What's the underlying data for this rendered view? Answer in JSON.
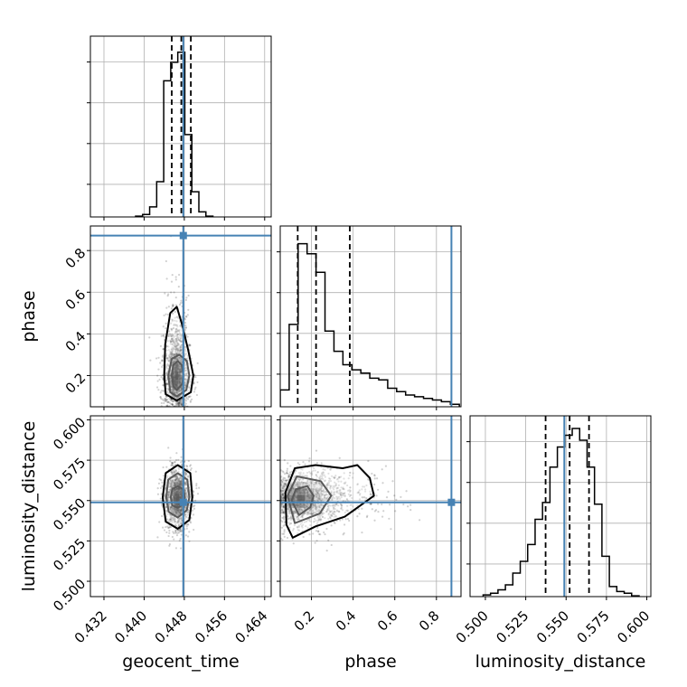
{
  "chart_data": {
    "type": "corner",
    "colors": {
      "truth": "#4682b4",
      "hist": "#000000",
      "quantile": "#000000",
      "grid": "#b0b0b0"
    },
    "parameters": [
      "geocent_time",
      "phase",
      "luminosity_distance"
    ],
    "truths": {
      "geocent_time": 0.4478,
      "phase": 0.872,
      "luminosity_distance": 0.5489
    },
    "quantiles": {
      "geocent_time": [
        0.4455,
        0.4474,
        0.4493
      ],
      "phase": [
        0.134,
        0.222,
        0.384
      ],
      "luminosity_distance": [
        0.5373,
        0.5522,
        0.5642
      ]
    },
    "axes": {
      "geocent_time": {
        "label": "geocent_time",
        "range": [
          0.4293,
          0.4653
        ],
        "ticks": [
          0.432,
          0.44,
          0.448,
          0.456,
          0.464
        ],
        "tick_labels": [
          "0.432",
          "0.440",
          "0.448",
          "0.456",
          "0.464"
        ]
      },
      "phase": {
        "label": "phase",
        "range": [
          0.05,
          0.918
        ],
        "ticks": [
          0.2,
          0.4,
          0.6,
          0.8
        ],
        "tick_labels": [
          "0.2",
          "0.4",
          "0.6",
          "0.8"
        ]
      },
      "luminosity_distance": {
        "label": "luminosity_distance",
        "range": [
          0.4905,
          0.6025
        ],
        "ticks": [
          0.5,
          0.525,
          0.55,
          0.575,
          0.6
        ],
        "tick_labels": [
          "0.500",
          "0.525",
          "0.550",
          "0.575",
          "0.600"
        ]
      }
    },
    "histograms": {
      "geocent_time": {
        "edges": [
          0.4383,
          0.4397,
          0.4411,
          0.4425,
          0.4439,
          0.4453,
          0.4467,
          0.4481,
          0.4495,
          0.4509,
          0.4523,
          0.4537
        ],
        "counts": [
          0.005,
          0.015,
          0.06,
          0.21,
          0.81,
          0.92,
          0.98,
          0.49,
          0.15,
          0.03,
          0.005
        ]
      },
      "phase": {
        "edges": [
          0.05,
          0.093,
          0.136,
          0.179,
          0.222,
          0.265,
          0.308,
          0.351,
          0.394,
          0.437,
          0.48,
          0.523,
          0.566,
          0.609,
          0.652,
          0.695,
          0.738,
          0.781,
          0.824,
          0.867,
          0.91
        ],
        "counts": [
          0.1,
          0.49,
          0.97,
          0.91,
          0.8,
          0.45,
          0.33,
          0.25,
          0.22,
          0.2,
          0.17,
          0.16,
          0.11,
          0.09,
          0.07,
          0.06,
          0.05,
          0.04,
          0.03,
          0.015
        ]
      },
      "luminosity_distance": {
        "edges": [
          0.4986,
          0.5032,
          0.5078,
          0.5124,
          0.517,
          0.5216,
          0.5262,
          0.5308,
          0.5354,
          0.54,
          0.5446,
          0.5492,
          0.5538,
          0.5584,
          0.563,
          0.5676,
          0.5722,
          0.5768,
          0.5814,
          0.586,
          0.5906,
          0.5952
        ],
        "counts": [
          0.01,
          0.02,
          0.04,
          0.07,
          0.14,
          0.21,
          0.31,
          0.46,
          0.56,
          0.77,
          0.89,
          0.96,
          1.0,
          0.93,
          0.77,
          0.55,
          0.24,
          0.06,
          0.03,
          0.02,
          0.005
        ]
      }
    },
    "density_2d": [
      {
        "x": "geocent_time",
        "y": "phase",
        "center": [
          0.4465,
          0.2
        ],
        "sigma": [
          0.0013,
          0.09
        ],
        "tail": [
          0.0,
          0.2
        ],
        "contours": [
          [
            [
              0.4465,
              0.13
            ],
            [
              0.4476,
              0.16
            ],
            [
              0.4478,
              0.2
            ],
            [
              0.4475,
              0.25
            ],
            [
              0.4467,
              0.27
            ],
            [
              0.4458,
              0.25
            ],
            [
              0.4455,
              0.2
            ],
            [
              0.4458,
              0.15
            ]
          ],
          [
            [
              0.4465,
              0.1
            ],
            [
              0.4484,
              0.13
            ],
            [
              0.449,
              0.2
            ],
            [
              0.4485,
              0.27
            ],
            [
              0.447,
              0.3
            ],
            [
              0.4455,
              0.28
            ],
            [
              0.4448,
              0.2
            ],
            [
              0.4452,
              0.12
            ]
          ],
          [
            [
              0.4465,
              0.08
            ],
            [
              0.4493,
              0.12
            ],
            [
              0.4498,
              0.2
            ],
            [
              0.4488,
              0.32
            ],
            [
              0.4475,
              0.45
            ],
            [
              0.4465,
              0.53
            ],
            [
              0.4452,
              0.5
            ],
            [
              0.4442,
              0.35
            ],
            [
              0.444,
              0.2
            ],
            [
              0.4443,
              0.11
            ]
          ]
        ]
      },
      {
        "x": "geocent_time",
        "y": "luminosity_distance",
        "center": [
          0.4467,
          0.5518
        ],
        "sigma": [
          0.0013,
          0.0095
        ],
        "tail": [
          0.0,
          0.0
        ],
        "contours": [
          [
            [
              0.4467,
              0.5455
            ],
            [
              0.4478,
              0.548
            ],
            [
              0.4481,
              0.552
            ],
            [
              0.4478,
              0.557
            ],
            [
              0.4467,
              0.559
            ],
            [
              0.4456,
              0.557
            ],
            [
              0.4453,
              0.552
            ],
            [
              0.4456,
              0.547
            ]
          ],
          [
            [
              0.4467,
              0.5395
            ],
            [
              0.4485,
              0.544
            ],
            [
              0.449,
              0.552
            ],
            [
              0.4486,
              0.563
            ],
            [
              0.4467,
              0.567
            ],
            [
              0.4448,
              0.563
            ],
            [
              0.4444,
              0.552
            ],
            [
              0.4449,
              0.543
            ]
          ],
          [
            [
              0.4467,
              0.5325
            ],
            [
              0.449,
              0.538
            ],
            [
              0.4496,
              0.552
            ],
            [
              0.4492,
              0.567
            ],
            [
              0.4467,
              0.572
            ],
            [
              0.4443,
              0.567
            ],
            [
              0.4437,
              0.552
            ],
            [
              0.4443,
              0.537
            ]
          ]
        ]
      },
      {
        "x": "phase",
        "y": "luminosity_distance",
        "center": [
          0.15,
          0.5515
        ],
        "sigma": [
          0.09,
          0.009
        ],
        "tail": [
          0.25,
          0.0
        ],
        "contours": [
          [
            [
              0.14,
              0.541
            ],
            [
              0.195,
              0.546
            ],
            [
              0.21,
              0.553
            ],
            [
              0.18,
              0.559
            ],
            [
              0.125,
              0.557
            ],
            [
              0.105,
              0.55
            ]
          ],
          [
            [
              0.12,
              0.536
            ],
            [
              0.24,
              0.542
            ],
            [
              0.295,
              0.553
            ],
            [
              0.245,
              0.562
            ],
            [
              0.13,
              0.565
            ],
            [
              0.085,
              0.553
            ]
          ],
          [
            [
              0.11,
              0.527
            ],
            [
              0.22,
              0.534
            ],
            [
              0.36,
              0.54
            ],
            [
              0.5,
              0.553
            ],
            [
              0.48,
              0.564
            ],
            [
              0.42,
              0.572
            ],
            [
              0.35,
              0.57
            ],
            [
              0.22,
              0.572
            ],
            [
              0.12,
              0.57
            ],
            [
              0.075,
              0.555
            ],
            [
              0.08,
              0.535
            ]
          ]
        ]
      }
    ]
  }
}
